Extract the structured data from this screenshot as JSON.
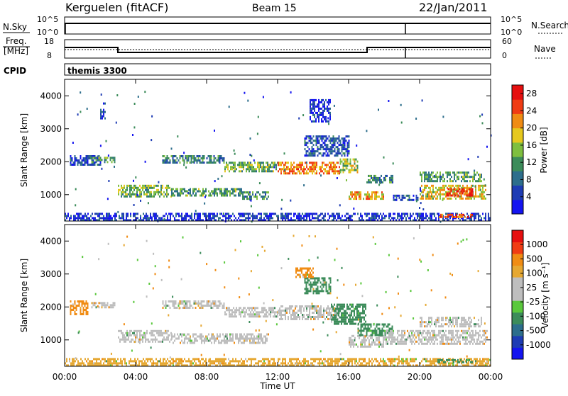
{
  "header": {
    "station": "Kerguelen (fitACF)",
    "beam": "Beam 15",
    "date": "22/Jan/2011"
  },
  "top_panels": {
    "nsky": {
      "label": "N.Sky",
      "ticks": [
        "10^5",
        "10^0"
      ],
      "right_ticks": [
        "10^5",
        "10^0"
      ],
      "right_label": "N.Search"
    },
    "freq": {
      "label_line1": "Freq.",
      "label_line2": "[MHz]",
      "ticks": [
        "18",
        "8"
      ],
      "right_ticks": [
        "60",
        "0"
      ],
      "right_label": "Nave"
    },
    "cpid": {
      "label": "CPID",
      "value": "themis 3300"
    }
  },
  "colors": {
    "power": [
      "#1414f0",
      "#1e3cb4",
      "#2d6e8c",
      "#3c8c5a",
      "#7fbf3f",
      "#e6c81e",
      "#f08c14",
      "#f03c14",
      "#e60f0f"
    ],
    "velocity": [
      "#e60f0f",
      "#f03c14",
      "#f08c14",
      "#e6a832",
      "#bebebe",
      "#bebebe",
      "#5ac83c",
      "#3c8c5a",
      "#2d6e8c",
      "#1e3cb4",
      "#1414f0"
    ]
  },
  "chart_data": [
    {
      "type": "heatmap",
      "name": "power",
      "xlabel": "",
      "ylabel": "Slant Range [km]",
      "ylim": [
        200,
        4500
      ],
      "yticks": [
        "1000",
        "2000",
        "3000",
        "4000"
      ],
      "xlim": [
        "00:00",
        "24:00"
      ],
      "colorbar_label": "Power [dB]",
      "colorbar_ticks": [
        "4",
        "8",
        "12",
        "16",
        "20",
        "24",
        "28"
      ],
      "colorbar_range": [
        0,
        30
      ],
      "regions": [
        {
          "t0": 0.0,
          "t1": 24.0,
          "r0": 250,
          "r1": 450,
          "level": 4
        },
        {
          "t0": 0.3,
          "t1": 2.0,
          "r0": 1900,
          "r1": 2200,
          "level": 6
        },
        {
          "t0": 1.5,
          "t1": 2.8,
          "r0": 2000,
          "r1": 2150,
          "level": 12
        },
        {
          "t0": 3.0,
          "t1": 6.0,
          "r0": 950,
          "r1": 1300,
          "level": 14
        },
        {
          "t0": 6.0,
          "t1": 10.0,
          "r0": 950,
          "r1": 1200,
          "level": 12
        },
        {
          "t0": 10.0,
          "t1": 11.5,
          "r0": 850,
          "r1": 1100,
          "level": 10
        },
        {
          "t0": 5.5,
          "t1": 9.0,
          "r0": 1950,
          "r1": 2200,
          "level": 10
        },
        {
          "t0": 9.0,
          "t1": 12.0,
          "r0": 1700,
          "r1": 2000,
          "level": 14
        },
        {
          "t0": 12.0,
          "t1": 15.5,
          "r0": 1650,
          "r1": 2000,
          "level": 22
        },
        {
          "t0": 15.5,
          "t1": 16.5,
          "r0": 1700,
          "r1": 2100,
          "level": 16
        },
        {
          "t0": 13.5,
          "t1": 16.0,
          "r0": 2200,
          "r1": 2800,
          "level": 6
        },
        {
          "t0": 16.0,
          "t1": 18.0,
          "r0": 900,
          "r1": 1100,
          "level": 20
        },
        {
          "t0": 17.0,
          "t1": 18.5,
          "r0": 1350,
          "r1": 1600,
          "level": 10
        },
        {
          "t0": 18.5,
          "t1": 20.0,
          "r0": 850,
          "r1": 1000,
          "level": 6
        },
        {
          "t0": 20.0,
          "t1": 23.7,
          "r0": 900,
          "r1": 1300,
          "level": 18
        },
        {
          "t0": 21.5,
          "t1": 23.0,
          "r0": 1000,
          "r1": 1200,
          "level": 26
        },
        {
          "t0": 20.0,
          "t1": 23.5,
          "r0": 1400,
          "r1": 1700,
          "level": 12
        },
        {
          "t0": 21.0,
          "t1": 23.0,
          "r0": 320,
          "r1": 420,
          "level": 24
        },
        {
          "t0": 13.8,
          "t1": 15.0,
          "r0": 3200,
          "r1": 3900,
          "level": 4
        },
        {
          "t0": 2.0,
          "t1": 2.3,
          "r0": 3300,
          "r1": 3800,
          "level": 4
        }
      ]
    },
    {
      "type": "heatmap",
      "name": "velocity",
      "xlabel": "Time UT",
      "ylabel": "Slant Range [km]",
      "ylim": [
        200,
        4500
      ],
      "yticks": [
        "1000",
        "2000",
        "3000",
        "4000"
      ],
      "xlim": [
        "00:00",
        "24:00"
      ],
      "xticks": [
        "00:00",
        "04:00",
        "08:00",
        "12:00",
        "16:00",
        "20:00",
        "00:00"
      ],
      "colorbar_label": "Velocity [m s⁻¹]",
      "colorbar_ticks": [
        "1000",
        "500",
        "100",
        "25",
        "-25",
        "-100",
        "-500",
        "-1000"
      ],
      "regions": [
        {
          "t0": 0.0,
          "t1": 24.0,
          "r0": 250,
          "r1": 450,
          "vel": -80
        },
        {
          "t0": 0.3,
          "t1": 1.3,
          "r0": 1800,
          "r1": 2200,
          "vel": -120
        },
        {
          "t0": 1.5,
          "t1": 2.8,
          "r0": 2000,
          "r1": 2150,
          "vel": 0
        },
        {
          "t0": 3.0,
          "t1": 6.0,
          "r0": 950,
          "r1": 1300,
          "vel": 0
        },
        {
          "t0": 6.0,
          "t1": 11.5,
          "r0": 900,
          "r1": 1200,
          "vel": 0
        },
        {
          "t0": 5.5,
          "t1": 9.0,
          "r0": 1950,
          "r1": 2200,
          "vel": 0
        },
        {
          "t0": 9.0,
          "t1": 12.0,
          "r0": 1700,
          "r1": 2000,
          "vel": 0
        },
        {
          "t0": 12.0,
          "t1": 15.5,
          "r0": 1650,
          "r1": 2050,
          "vel": 0
        },
        {
          "t0": 15.0,
          "t1": 17.0,
          "r0": 1500,
          "r1": 2100,
          "vel": 150
        },
        {
          "t0": 16.0,
          "t1": 18.0,
          "r0": 800,
          "r1": 1150,
          "vel": 0
        },
        {
          "t0": 16.5,
          "t1": 18.5,
          "r0": 1150,
          "r1": 1500,
          "vel": 150
        },
        {
          "t0": 18.0,
          "t1": 23.8,
          "r0": 850,
          "r1": 1300,
          "vel": 0
        },
        {
          "t0": 20.0,
          "t1": 23.5,
          "r0": 1400,
          "r1": 1700,
          "vel": 0
        },
        {
          "t0": 21.0,
          "t1": 23.0,
          "r0": 320,
          "r1": 420,
          "vel": 150
        },
        {
          "t0": 13.5,
          "t1": 15.0,
          "r0": 2400,
          "r1": 2900,
          "vel": 120
        },
        {
          "t0": 13.0,
          "t1": 14.0,
          "r0": 2900,
          "r1": 3200,
          "vel": -120
        }
      ]
    }
  ]
}
